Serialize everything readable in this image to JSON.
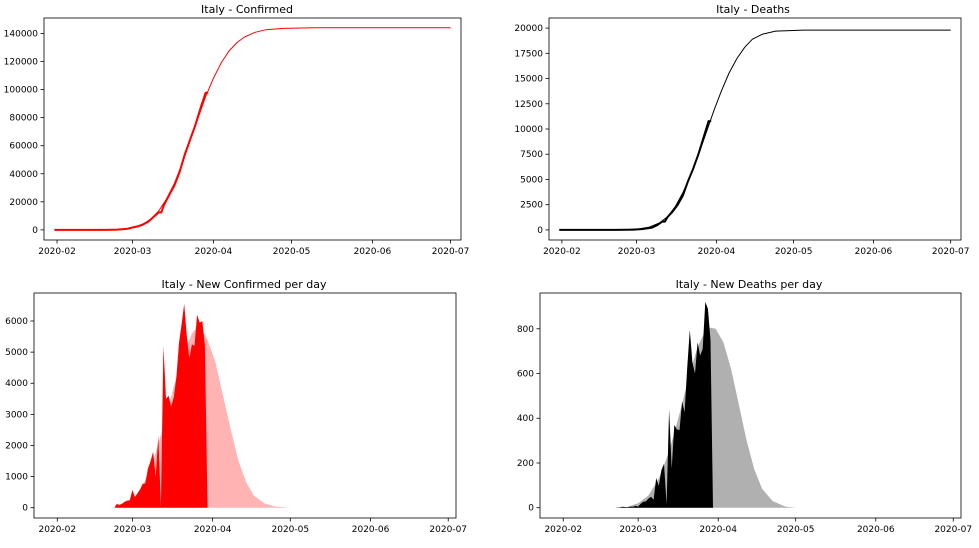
{
  "chart_data": [
    {
      "id": "confirmed",
      "type": "line",
      "title": "Italy - Confirmed",
      "xlabel": "",
      "ylabel": "",
      "x_ticks": [
        "2020-02",
        "2020-03",
        "2020-04",
        "2020-05",
        "2020-06",
        "2020-07"
      ],
      "x_tick_dates": [
        "2020-02-01",
        "2020-03-01",
        "2020-04-01",
        "2020-05-01",
        "2020-06-01",
        "2020-07-01"
      ],
      "xlim": [
        "2020-01-27",
        "2020-07-05"
      ],
      "y_ticks": [
        0,
        20000,
        40000,
        60000,
        80000,
        100000,
        120000,
        140000
      ],
      "ylim": [
        -7200,
        151000
      ],
      "grid": false,
      "series": [
        {
          "role": "fitted",
          "color": "#ff0000",
          "width": 1,
          "points": [
            [
              "2020-01-31",
              0
            ],
            [
              "2020-02-20",
              40
            ],
            [
              "2020-02-27",
              450
            ],
            [
              "2020-03-01",
              1400
            ],
            [
              "2020-03-05",
              4200
            ],
            [
              "2020-03-08",
              7800
            ],
            [
              "2020-03-11",
              13500
            ],
            [
              "2020-03-14",
              22000
            ],
            [
              "2020-03-17",
              33000
            ],
            [
              "2020-03-20",
              47000
            ],
            [
              "2020-03-23",
              63000
            ],
            [
              "2020-03-26",
              79000
            ],
            [
              "2020-03-29",
              95000
            ],
            [
              "2020-04-01",
              108000
            ],
            [
              "2020-04-04",
              119000
            ],
            [
              "2020-04-07",
              127500
            ],
            [
              "2020-04-10",
              133500
            ],
            [
              "2020-04-13",
              137500
            ],
            [
              "2020-04-17",
              140800
            ],
            [
              "2020-04-21",
              142600
            ],
            [
              "2020-04-28",
              143600
            ],
            [
              "2020-05-10",
              144000
            ],
            [
              "2020-07-01",
              144000
            ]
          ]
        },
        {
          "role": "observed",
          "color": "#ff0000",
          "width": 2,
          "points": [
            [
              "2020-01-31",
              0
            ],
            [
              "2020-02-20",
              3
            ],
            [
              "2020-02-24",
              229
            ],
            [
              "2020-02-26",
              470
            ],
            [
              "2020-02-28",
              888
            ],
            [
              "2020-03-01",
              1694
            ],
            [
              "2020-03-03",
              2502
            ],
            [
              "2020-03-05",
              3858
            ],
            [
              "2020-03-07",
              5883
            ],
            [
              "2020-03-09",
              9172
            ],
            [
              "2020-03-11",
              12462
            ],
            [
              "2020-03-12",
              12462
            ],
            [
              "2020-03-13",
              17660
            ],
            [
              "2020-03-15",
              24747
            ],
            [
              "2020-03-17",
              31506
            ],
            [
              "2020-03-19",
              41035
            ],
            [
              "2020-03-21",
              53578
            ],
            [
              "2020-03-23",
              63927
            ],
            [
              "2020-03-25",
              74386
            ],
            [
              "2020-03-27",
              86498
            ],
            [
              "2020-03-29",
              97689
            ],
            [
              "2020-03-30",
              97689
            ]
          ]
        }
      ]
    },
    {
      "id": "deaths",
      "type": "line",
      "title": "Italy - Deaths",
      "xlabel": "",
      "ylabel": "",
      "x_ticks": [
        "2020-02",
        "2020-03",
        "2020-04",
        "2020-05",
        "2020-06",
        "2020-07"
      ],
      "x_tick_dates": [
        "2020-02-01",
        "2020-03-01",
        "2020-04-01",
        "2020-05-01",
        "2020-06-01",
        "2020-07-01"
      ],
      "xlim": [
        "2020-01-27",
        "2020-07-05"
      ],
      "y_ticks": [
        0,
        2500,
        5000,
        7500,
        10000,
        12500,
        15000,
        17500,
        20000
      ],
      "ylim": [
        -1000,
        21000
      ],
      "grid": false,
      "series": [
        {
          "role": "fitted",
          "color": "#000000",
          "width": 1,
          "points": [
            [
              "2020-01-31",
              0
            ],
            [
              "2020-02-25",
              20
            ],
            [
              "2020-03-02",
              100
            ],
            [
              "2020-03-06",
              280
            ],
            [
              "2020-03-10",
              700
            ],
            [
              "2020-03-13",
              1300
            ],
            [
              "2020-03-16",
              2300
            ],
            [
              "2020-03-19",
              3700
            ],
            [
              "2020-03-22",
              5400
            ],
            [
              "2020-03-25",
              7400
            ],
            [
              "2020-03-28",
              9600
            ],
            [
              "2020-03-31",
              11800
            ],
            [
              "2020-04-03",
              13800
            ],
            [
              "2020-04-06",
              15600
            ],
            [
              "2020-04-09",
              17000
            ],
            [
              "2020-04-12",
              18100
            ],
            [
              "2020-04-15",
              18900
            ],
            [
              "2020-04-19",
              19400
            ],
            [
              "2020-04-24",
              19700
            ],
            [
              "2020-05-05",
              19800
            ],
            [
              "2020-07-01",
              19800
            ]
          ]
        },
        {
          "role": "observed",
          "color": "#000000",
          "width": 2,
          "points": [
            [
              "2020-01-31",
              0
            ],
            [
              "2020-02-22",
              2
            ],
            [
              "2020-02-26",
              12
            ],
            [
              "2020-02-29",
              29
            ],
            [
              "2020-03-03",
              79
            ],
            [
              "2020-03-05",
              148
            ],
            [
              "2020-03-07",
              233
            ],
            [
              "2020-03-09",
              463
            ],
            [
              "2020-03-11",
              827
            ],
            [
              "2020-03-12",
              827
            ],
            [
              "2020-03-13",
              1266
            ],
            [
              "2020-03-15",
              1809
            ],
            [
              "2020-03-17",
              2503
            ],
            [
              "2020-03-19",
              3405
            ],
            [
              "2020-03-21",
              4825
            ],
            [
              "2020-03-23",
              6077
            ],
            [
              "2020-03-25",
              7503
            ],
            [
              "2020-03-27",
              9134
            ],
            [
              "2020-03-29",
              10779
            ],
            [
              "2020-03-30",
              10779
            ]
          ]
        }
      ]
    },
    {
      "id": "new-confirmed",
      "type": "area",
      "title": "Italy - New Confirmed per day",
      "xlabel": "",
      "ylabel": "",
      "x_ticks": [
        "2020-02",
        "2020-03",
        "2020-04",
        "2020-05",
        "2020-06",
        "2020-07"
      ],
      "x_tick_dates": [
        "2020-02-01",
        "2020-03-01",
        "2020-04-01",
        "2020-05-01",
        "2020-06-01",
        "2020-07-01"
      ],
      "xlim": [
        "2020-01-23",
        "2020-07-04"
      ],
      "y_ticks": [
        0,
        1000,
        2000,
        3000,
        4000,
        5000,
        6000
      ],
      "ylim": [
        -330,
        6900
      ],
      "grid": false,
      "series": [
        {
          "role": "fitted",
          "color": "#ffb3b3",
          "points": [
            [
              "2020-02-25",
              0
            ],
            [
              "2020-03-01",
              250
            ],
            [
              "2020-03-05",
              700
            ],
            [
              "2020-03-09",
              1500
            ],
            [
              "2020-03-13",
              2600
            ],
            [
              "2020-03-17",
              3900
            ],
            [
              "2020-03-21",
              5000
            ],
            [
              "2020-03-24",
              5600
            ],
            [
              "2020-03-26",
              5800
            ],
            [
              "2020-03-28",
              5700
            ],
            [
              "2020-03-30",
              5400
            ],
            [
              "2020-04-02",
              4700
            ],
            [
              "2020-04-05",
              3600
            ],
            [
              "2020-04-08",
              2500
            ],
            [
              "2020-04-11",
              1500
            ],
            [
              "2020-04-14",
              800
            ],
            [
              "2020-04-17",
              380
            ],
            [
              "2020-04-21",
              140
            ],
            [
              "2020-04-25",
              40
            ],
            [
              "2020-05-01",
              0
            ]
          ]
        },
        {
          "role": "observed",
          "color": "#ff0000",
          "points": [
            [
              "2020-02-22",
              0
            ],
            [
              "2020-02-23",
              0
            ],
            [
              "2020-02-24",
              120
            ],
            [
              "2020-02-25",
              90
            ],
            [
              "2020-02-26",
              130
            ],
            [
              "2020-02-27",
              190
            ],
            [
              "2020-02-28",
              230
            ],
            [
              "2020-02-29",
              240
            ],
            [
              "2020-03-01",
              570
            ],
            [
              "2020-03-02",
              340
            ],
            [
              "2020-03-03",
              470
            ],
            [
              "2020-03-04",
              590
            ],
            [
              "2020-03-05",
              770
            ],
            [
              "2020-03-06",
              780
            ],
            [
              "2020-03-07",
              1250
            ],
            [
              "2020-03-08",
              1490
            ],
            [
              "2020-03-09",
              1800
            ],
            [
              "2020-03-10",
              980
            ],
            [
              "2020-03-11",
              2310
            ],
            [
              "2020-03-12",
              30
            ],
            [
              "2020-03-13",
              5200
            ],
            [
              "2020-03-14",
              3500
            ],
            [
              "2020-03-15",
              3600
            ],
            [
              "2020-03-16",
              3250
            ],
            [
              "2020-03-17",
              3550
            ],
            [
              "2020-03-18",
              4200
            ],
            [
              "2020-03-19",
              5300
            ],
            [
              "2020-03-20",
              5900
            ],
            [
              "2020-03-21",
              6550
            ],
            [
              "2020-03-22",
              5550
            ],
            [
              "2020-03-23",
              4800
            ],
            [
              "2020-03-24",
              5250
            ],
            [
              "2020-03-25",
              5200
            ],
            [
              "2020-03-26",
              6200
            ],
            [
              "2020-03-27",
              5950
            ],
            [
              "2020-03-28",
              6000
            ],
            [
              "2020-03-29",
              5200
            ],
            [
              "2020-03-30",
              0
            ]
          ]
        }
      ]
    },
    {
      "id": "new-deaths",
      "type": "area",
      "title": "Italy - New Deaths per day",
      "xlabel": "",
      "ylabel": "",
      "x_ticks": [
        "2020-02",
        "2020-03",
        "2020-04",
        "2020-05",
        "2020-06",
        "2020-07"
      ],
      "x_tick_dates": [
        "2020-02-01",
        "2020-03-01",
        "2020-04-01",
        "2020-05-01",
        "2020-06-01",
        "2020-07-01"
      ],
      "xlim": [
        "2020-01-23",
        "2020-07-04"
      ],
      "y_ticks": [
        0,
        200,
        400,
        600,
        800
      ],
      "ylim": [
        -46,
        960
      ],
      "grid": false,
      "series": [
        {
          "role": "fitted",
          "color": "#b0b0b0",
          "points": [
            [
              "2020-02-25",
              0
            ],
            [
              "2020-03-01",
              20
            ],
            [
              "2020-03-05",
              55
            ],
            [
              "2020-03-09",
              130
            ],
            [
              "2020-03-13",
              250
            ],
            [
              "2020-03-17",
              420
            ],
            [
              "2020-03-21",
              600
            ],
            [
              "2020-03-24",
              720
            ],
            [
              "2020-03-27",
              790
            ],
            [
              "2020-03-29",
              805
            ],
            [
              "2020-03-31",
              800
            ],
            [
              "2020-04-03",
              740
            ],
            [
              "2020-04-06",
              620
            ],
            [
              "2020-04-09",
              460
            ],
            [
              "2020-04-12",
              300
            ],
            [
              "2020-04-15",
              170
            ],
            [
              "2020-04-18",
              85
            ],
            [
              "2020-04-22",
              30
            ],
            [
              "2020-04-27",
              5
            ],
            [
              "2020-05-01",
              0
            ]
          ]
        },
        {
          "role": "observed",
          "color": "#000000",
          "points": [
            [
              "2020-02-21",
              0
            ],
            [
              "2020-02-22",
              1
            ],
            [
              "2020-02-23",
              2
            ],
            [
              "2020-02-24",
              4
            ],
            [
              "2020-02-25",
              3
            ],
            [
              "2020-02-26",
              2
            ],
            [
              "2020-02-27",
              5
            ],
            [
              "2020-02-28",
              4
            ],
            [
              "2020-02-29",
              8
            ],
            [
              "2020-03-01",
              5
            ],
            [
              "2020-03-02",
              18
            ],
            [
              "2020-03-03",
              27
            ],
            [
              "2020-03-04",
              28
            ],
            [
              "2020-03-05",
              41
            ],
            [
              "2020-03-06",
              49
            ],
            [
              "2020-03-07",
              36
            ],
            [
              "2020-03-08",
              133
            ],
            [
              "2020-03-09",
              97
            ],
            [
              "2020-03-10",
              168
            ],
            [
              "2020-03-11",
              196
            ],
            [
              "2020-03-12",
              15
            ],
            [
              "2020-03-13",
              440
            ],
            [
              "2020-03-14",
              175
            ],
            [
              "2020-03-15",
              370
            ],
            [
              "2020-03-16",
              350
            ],
            [
              "2020-03-17",
              347
            ],
            [
              "2020-03-18",
              475
            ],
            [
              "2020-03-19",
              427
            ],
            [
              "2020-03-20",
              625
            ],
            [
              "2020-03-21",
              795
            ],
            [
              "2020-03-22",
              650
            ],
            [
              "2020-03-23",
              600
            ],
            [
              "2020-03-24",
              740
            ],
            [
              "2020-03-25",
              680
            ],
            [
              "2020-03-26",
              710
            ],
            [
              "2020-03-27",
              920
            ],
            [
              "2020-03-28",
              890
            ],
            [
              "2020-03-29",
              750
            ],
            [
              "2020-03-30",
              0
            ]
          ]
        }
      ]
    }
  ]
}
